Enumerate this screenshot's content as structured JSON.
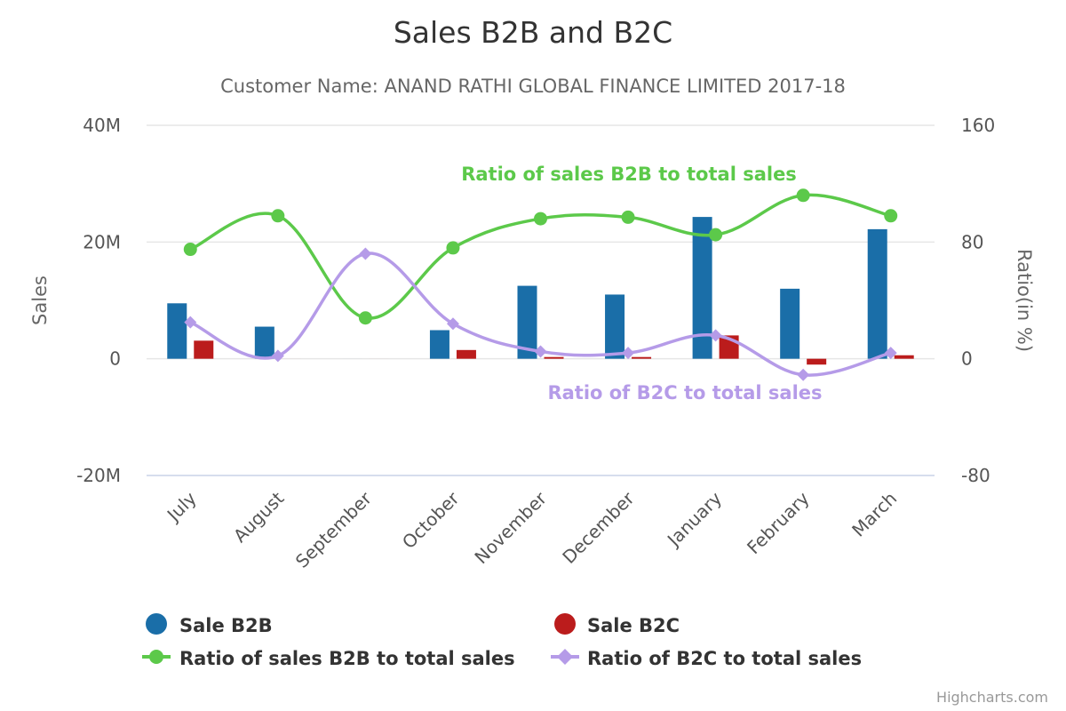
{
  "colors": {
    "sale_b2b": "#1a6ea8",
    "sale_b2c": "#bb1c1c",
    "ratio_b2b": "#5cc94a",
    "ratio_b2c": "#b59be8",
    "grid": "#e6e6e6"
  },
  "credits": "Highcharts.com",
  "chart_data": {
    "type": "bar",
    "title": "Sales B2B and B2C",
    "subtitle": "Customer Name: ANAND RATHI GLOBAL FINANCE LIMITED 2017-18",
    "categories": [
      "July",
      "August",
      "September",
      "October",
      "November",
      "December",
      "January",
      "February",
      "March"
    ],
    "y_axis_left": {
      "label": "Sales",
      "range": [
        -20000000,
        40000000
      ],
      "ticks": [
        -20000000,
        0,
        20000000,
        40000000
      ],
      "tick_labels": [
        "-20M",
        "0",
        "20M",
        "40M"
      ]
    },
    "y_axis_right": {
      "label": "Ratio(in %)",
      "range": [
        -80,
        160
      ],
      "ticks": [
        -80,
        0,
        80,
        160
      ],
      "tick_labels": [
        "-80",
        "0",
        "80",
        "160"
      ]
    },
    "grid": true,
    "legend_position": "bottom",
    "series": [
      {
        "name": "Sale B2B",
        "kind": "column",
        "axis": "left",
        "values": [
          9500000,
          5500000,
          0,
          4900000,
          12500000,
          11000000,
          24300000,
          12000000,
          22200000
        ]
      },
      {
        "name": "Sale B2C",
        "kind": "column",
        "axis": "left",
        "values": [
          3100000,
          0,
          0,
          1500000,
          300000,
          300000,
          4000000,
          -1000000,
          600000
        ]
      },
      {
        "name": "Ratio of sales B2B to total sales",
        "kind": "spline",
        "axis": "right",
        "marker": "circle",
        "values": [
          75,
          98,
          28,
          76,
          96,
          97,
          85,
          112,
          98
        ]
      },
      {
        "name": "Ratio of B2C to total sales",
        "kind": "spline",
        "axis": "right",
        "marker": "diamond",
        "values": [
          25,
          2,
          72,
          24,
          5,
          4,
          16,
          -11,
          4
        ]
      }
    ],
    "annotations": [
      {
        "text": "Ratio of sales B2B to total sales",
        "series": "Ratio of sales B2B to total sales"
      },
      {
        "text": "Ratio of B2C to total sales",
        "series": "Ratio of B2C to total sales"
      }
    ]
  }
}
